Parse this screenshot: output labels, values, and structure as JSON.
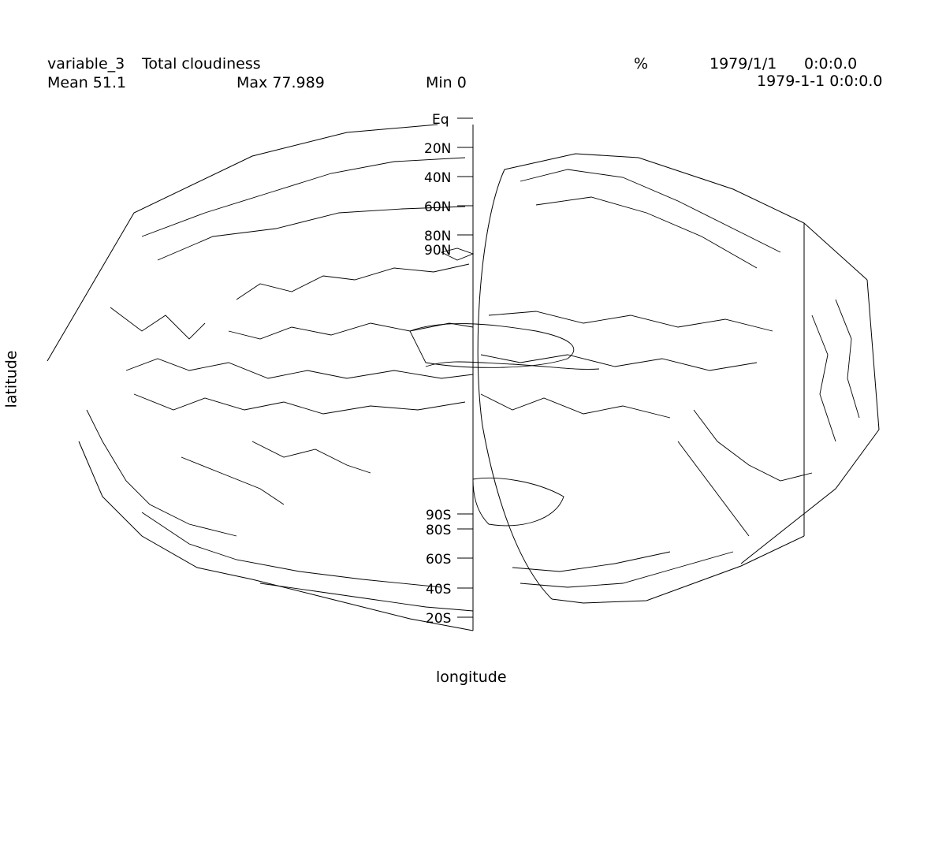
{
  "header": {
    "variable": "variable_3",
    "long_name": "Total cloudiness",
    "units": "%",
    "date": "1979/1/1",
    "time": "0:0:0.0",
    "datetime": "1979-1-1 0:0:0.0",
    "mean_label": "Mean 51.1",
    "max_label": "Max 77.989",
    "min_label": "Min 0"
  },
  "axes": {
    "xlabel": "longitude",
    "ylabel": "latitude"
  },
  "lat_labels": [
    "Eq",
    "20N",
    "40N",
    "60N",
    "80N",
    "90N",
    "90S",
    "80S",
    "60S",
    "40S",
    "20S"
  ],
  "stats": {
    "mean": 51.1,
    "max": 77.989,
    "min": 0
  },
  "colors": {
    "line": "#000000",
    "background": "#ffffff"
  }
}
